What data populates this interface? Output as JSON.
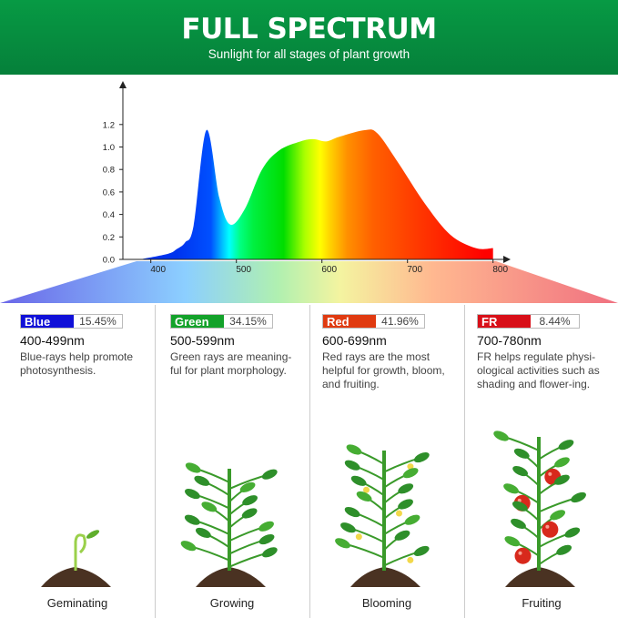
{
  "header": {
    "title": "FULL SPECTRUM",
    "subtitle": "Sunlight for all stages of plant growth"
  },
  "chart_data": {
    "type": "area",
    "x": [
      387,
      420,
      430,
      440,
      450,
      465,
      480,
      493,
      510,
      530,
      550,
      575,
      590,
      605,
      620,
      650,
      665,
      690,
      720,
      750,
      780,
      800
    ],
    "values": [
      0,
      0.05,
      0.09,
      0.15,
      0.3,
      1.15,
      0.55,
      0.31,
      0.45,
      0.8,
      0.97,
      1.05,
      1.07,
      1.05,
      1.09,
      1.15,
      1.12,
      0.85,
      0.5,
      0.22,
      0.1,
      0.1
    ],
    "xlim": [
      370,
      810
    ],
    "ylim": [
      0,
      1.25
    ],
    "xticks": [
      400,
      500,
      600,
      700,
      800
    ],
    "yticks": [
      "0.0",
      "0.2",
      "0.4",
      "0.6",
      "0.8",
      "1.0",
      "1.2"
    ],
    "grid": false,
    "fill": "spectrum gradient"
  },
  "bands": [
    {
      "name": "Blue",
      "color": "#1010d8",
      "percent": "15.45%",
      "range": "400-499nm",
      "desc": "Blue-rays help promote photosynthesis."
    },
    {
      "name": "Green",
      "color": "#13a22a",
      "percent": "34.15%",
      "range": "500-599nm",
      "desc": "Green rays are meaning-ful for plant morphology."
    },
    {
      "name": "Red",
      "color": "#e03a10",
      "percent": "41.96%",
      "range": "600-699nm",
      "desc": "Red rays are the most helpful for growth, bloom, and fruiting."
    },
    {
      "name": "FR",
      "color": "#d80f18",
      "percent": "8.44%",
      "range": "700-780nm",
      "desc": "FR helps regulate physi-ological activities such as shading and flower-ing."
    }
  ],
  "stages": [
    "Geminating",
    "Growing",
    "Blooming",
    "Fruiting"
  ]
}
